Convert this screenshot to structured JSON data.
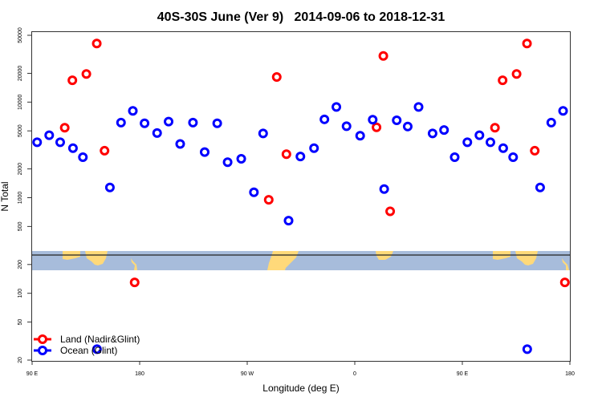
{
  "chart_data": {
    "type": "scatter",
    "title": "40S-30S June (Ver 9)   2014-09-06 to 2018-12-31",
    "xlabel": "Longitude (deg E)",
    "ylabel": "N Total",
    "xlim": [
      90,
      540
    ],
    "ylim": [
      20,
      50000
    ],
    "yscale": "log",
    "x_ticks": [
      {
        "value": 90,
        "label": "90 E"
      },
      {
        "value": 180,
        "label": "180"
      },
      {
        "value": 270,
        "label": "90 W"
      },
      {
        "value": 360,
        "label": "0"
      },
      {
        "value": 450,
        "label": "90 E"
      },
      {
        "value": 540,
        "label": "180"
      }
    ],
    "y_ticks": [
      {
        "value": 50000,
        "label": "50000"
      },
      {
        "value": 20000,
        "label": "20000"
      },
      {
        "value": 10000,
        "label": "10000"
      },
      {
        "value": 5000,
        "label": "5000"
      },
      {
        "value": 2000,
        "label": "2000"
      },
      {
        "value": 1000,
        "label": "1000"
      },
      {
        "value": 500,
        "label": "500"
      },
      {
        "value": 200,
        "label": "200"
      },
      {
        "value": 100,
        "label": "100"
      },
      {
        "value": 50,
        "label": "50"
      },
      {
        "value": 20,
        "label": "20"
      }
    ],
    "legend_position": "bottom-left",
    "series": [
      {
        "name": "Land (Nadir&Glint)",
        "color": "#ff0000",
        "points": [
          [
            117.3,
            5400
          ],
          [
            123.7,
            16900
          ],
          [
            135.4,
            19700
          ],
          [
            144.1,
            41000
          ],
          [
            150.6,
            3100
          ],
          [
            175.8,
            130
          ],
          [
            288.0,
            950
          ],
          [
            294.7,
            18300
          ],
          [
            302.8,
            2850
          ],
          [
            378.2,
            5450
          ],
          [
            383.9,
            30400
          ],
          [
            389.6,
            720
          ]
        ]
      },
      {
        "name": "Ocean (Glint)",
        "color": "#0000ff",
        "points": [
          [
            94.2,
            3800
          ],
          [
            104.3,
            4500
          ],
          [
            113.5,
            3800
          ],
          [
            124.2,
            3300
          ],
          [
            132.5,
            2650
          ],
          [
            144.3,
            26
          ],
          [
            155.1,
            1280
          ],
          [
            164.4,
            6100
          ],
          [
            174.3,
            8100
          ],
          [
            184.1,
            6000
          ],
          [
            194.6,
            4750
          ],
          [
            204.2,
            6250
          ],
          [
            213.9,
            3650
          ],
          [
            224.6,
            6100
          ],
          [
            234.4,
            3000
          ],
          [
            244.9,
            6000
          ],
          [
            253.6,
            2350
          ],
          [
            265.0,
            2550
          ],
          [
            275.6,
            1140
          ],
          [
            283.3,
            4700
          ],
          [
            304.6,
            575
          ],
          [
            314.5,
            2700
          ],
          [
            325.9,
            3300
          ],
          [
            334.6,
            6600
          ],
          [
            344.6,
            8900
          ],
          [
            353.1,
            5600
          ],
          [
            364.5,
            4450
          ],
          [
            375.0,
            6550
          ],
          [
            384.6,
            1230
          ],
          [
            395.1,
            6450
          ],
          [
            404.3,
            5550
          ],
          [
            413.4,
            8900
          ],
          [
            425.1,
            4700
          ],
          [
            434.7,
            5100
          ],
          [
            443.6,
            2650
          ]
        ]
      }
    ],
    "wrap_note_degrees": 360
  }
}
